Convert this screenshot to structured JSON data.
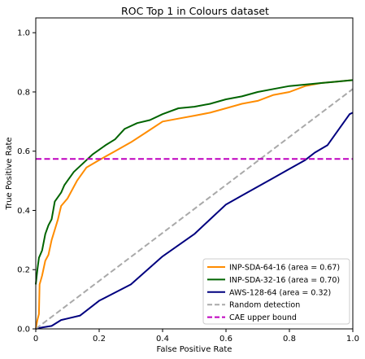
{
  "chart_data": {
    "type": "line",
    "title": "ROC Top 1 in Colours dataset",
    "xlabel": "False Positive Rate",
    "ylabel": "True Positive Rate",
    "xlim": [
      0.0,
      1.0
    ],
    "ylim": [
      0.0,
      1.05
    ],
    "x_ticks": [
      "0",
      "0.2",
      "0.4",
      "0.6",
      "0.8",
      "1.0"
    ],
    "x_tick_values": [
      0,
      0.2,
      0.4,
      0.6,
      0.8,
      1.0
    ],
    "y_ticks": [
      "0.0",
      "0.2",
      "0.4",
      "0.6",
      "0.8",
      "1.0"
    ],
    "y_tick_values": [
      0,
      0.2,
      0.4,
      0.6,
      0.8,
      1.0
    ],
    "grid": false,
    "legend_position": "bottom-right",
    "series": [
      {
        "name": "INP-SDA-64-16 (area = 0.67)",
        "color": "#ff8c00",
        "style": "solid",
        "points": [
          [
            0,
            0
          ],
          [
            0.005,
            0.03
          ],
          [
            0.01,
            0.05
          ],
          [
            0.012,
            0.15
          ],
          [
            0.02,
            0.18
          ],
          [
            0.03,
            0.23
          ],
          [
            0.04,
            0.25
          ],
          [
            0.05,
            0.3
          ],
          [
            0.07,
            0.37
          ],
          [
            0.08,
            0.415
          ],
          [
            0.1,
            0.44
          ],
          [
            0.13,
            0.5
          ],
          [
            0.16,
            0.545
          ],
          [
            0.2,
            0.57
          ],
          [
            0.25,
            0.6
          ],
          [
            0.3,
            0.63
          ],
          [
            0.35,
            0.665
          ],
          [
            0.4,
            0.7
          ],
          [
            0.45,
            0.71
          ],
          [
            0.5,
            0.72
          ],
          [
            0.55,
            0.73
          ],
          [
            0.6,
            0.745
          ],
          [
            0.65,
            0.76
          ],
          [
            0.7,
            0.77
          ],
          [
            0.75,
            0.79
          ],
          [
            0.8,
            0.8
          ],
          [
            0.85,
            0.82
          ],
          [
            0.9,
            0.83
          ],
          [
            0.95,
            0.835
          ],
          [
            1.0,
            0.84
          ]
        ]
      },
      {
        "name": "INP-SDA-32-16 (area = 0.70)",
        "color": "#006400",
        "style": "solid",
        "points": [
          [
            0,
            0.15
          ],
          [
            0.005,
            0.2
          ],
          [
            0.01,
            0.24
          ],
          [
            0.02,
            0.265
          ],
          [
            0.03,
            0.32
          ],
          [
            0.04,
            0.35
          ],
          [
            0.05,
            0.37
          ],
          [
            0.06,
            0.43
          ],
          [
            0.08,
            0.46
          ],
          [
            0.09,
            0.485
          ],
          [
            0.1,
            0.5
          ],
          [
            0.12,
            0.53
          ],
          [
            0.15,
            0.56
          ],
          [
            0.18,
            0.59
          ],
          [
            0.2,
            0.605
          ],
          [
            0.22,
            0.62
          ],
          [
            0.25,
            0.64
          ],
          [
            0.28,
            0.675
          ],
          [
            0.32,
            0.695
          ],
          [
            0.36,
            0.705
          ],
          [
            0.4,
            0.725
          ],
          [
            0.45,
            0.745
          ],
          [
            0.5,
            0.75
          ],
          [
            0.55,
            0.76
          ],
          [
            0.6,
            0.775
          ],
          [
            0.65,
            0.785
          ],
          [
            0.7,
            0.8
          ],
          [
            0.75,
            0.81
          ],
          [
            0.8,
            0.82
          ],
          [
            0.85,
            0.825
          ],
          [
            0.9,
            0.83
          ],
          [
            0.95,
            0.835
          ],
          [
            1.0,
            0.84
          ]
        ]
      },
      {
        "name": "AWS-128-64 (area = 0.32)",
        "color": "#00007f",
        "style": "solid",
        "points": [
          [
            0,
            0
          ],
          [
            0.02,
            0.005
          ],
          [
            0.05,
            0.01
          ],
          [
            0.08,
            0.03
          ],
          [
            0.1,
            0.035
          ],
          [
            0.14,
            0.045
          ],
          [
            0.2,
            0.095
          ],
          [
            0.3,
            0.15
          ],
          [
            0.4,
            0.245
          ],
          [
            0.5,
            0.32
          ],
          [
            0.55,
            0.37
          ],
          [
            0.6,
            0.42
          ],
          [
            0.65,
            0.45
          ],
          [
            0.7,
            0.48
          ],
          [
            0.75,
            0.51
          ],
          [
            0.8,
            0.54
          ],
          [
            0.85,
            0.57
          ],
          [
            0.88,
            0.595
          ],
          [
            0.92,
            0.62
          ],
          [
            0.96,
            0.68
          ],
          [
            0.99,
            0.725
          ],
          [
            1.0,
            0.73
          ]
        ]
      },
      {
        "name": "Random detection",
        "color": "#a9a9a9",
        "style": "dashed",
        "points": [
          [
            0,
            0
          ],
          [
            1.0,
            0.81
          ]
        ]
      },
      {
        "name": "CAE upper bound",
        "color": "#bf00bf",
        "style": "dashed",
        "points": [
          [
            0,
            0.574
          ],
          [
            1.0,
            0.574
          ]
        ]
      }
    ]
  }
}
